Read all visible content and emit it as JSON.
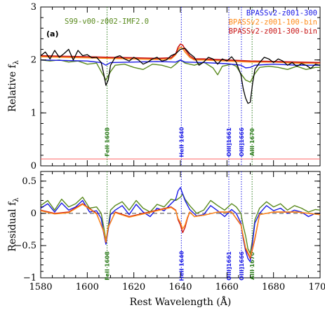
{
  "chart_data": {
    "type": "line",
    "xlabel": "Rest Wavelength (Å)",
    "xlim": [
      1580,
      1700
    ],
    "x_ticks": [
      1580,
      1600,
      1620,
      1640,
      1660,
      1680,
      1700
    ],
    "panels": [
      {
        "panel_label": "(a)",
        "ylabel": "Relative f",
        "ylabel_sub": "λ",
        "ylim": [
          0,
          3
        ],
        "y_ticks": [
          0,
          1,
          2,
          3
        ],
        "legend_left": {
          "name": "S99-v00-z002-IMF2.0",
          "color": "#5a8a1e"
        },
        "legend_right": [
          {
            "name": "BPASSv2-z001-300",
            "color": "#1a1ae6"
          },
          {
            "name": "BPASSv2-z001-100-bin",
            "color": "#ff8c1a"
          },
          {
            "name": "BPASSv2-z001-300-bin",
            "color": "#c81414"
          }
        ],
        "reference_line": {
          "y": 0.13,
          "color": "#ff6666"
        },
        "observed_color": "#000000"
      },
      {
        "ylabel": "Residual f",
        "ylabel_sub": "λ",
        "ylim": [
          -1,
          0.65
        ],
        "y_ticks": [
          -1,
          -0.5,
          0,
          0.5
        ],
        "y_tick_labels": [
          "−1",
          "−0.5",
          "0",
          "0.5"
        ],
        "zero_line": true
      }
    ],
    "line_markers": [
      {
        "label": "FeII 1608",
        "x": 1608.5,
        "color": "#2e7d1e"
      },
      {
        "label": "HeII 1640",
        "x": 1640.4,
        "color": "#1a1ae6"
      },
      {
        "label": "OIII]1661",
        "x": 1660.8,
        "color": "#1a1ae6"
      },
      {
        "label": "OIII]1666",
        "x": 1666.2,
        "color": "#1a1ae6"
      },
      {
        "label": "AlII 1670",
        "x": 1670.8,
        "color": "#2e7d1e"
      }
    ],
    "observed_top": {
      "x": [
        1580,
        1582,
        1584,
        1586,
        1588,
        1590,
        1592,
        1594,
        1596,
        1598,
        1600,
        1602,
        1604,
        1606,
        1607,
        1608,
        1609,
        1610,
        1612,
        1614,
        1616,
        1618,
        1620,
        1622,
        1624,
        1626,
        1628,
        1630,
        1632,
        1634,
        1636,
        1638,
        1640,
        1642,
        1644,
        1646,
        1648,
        1650,
        1652,
        1654,
        1656,
        1658,
        1660,
        1662,
        1664,
        1666,
        1667,
        1668,
        1669,
        1670,
        1671,
        1672,
        1674,
        1676,
        1678,
        1680,
        1682,
        1684,
        1686,
        1688,
        1690,
        1692,
        1694,
        1696,
        1698,
        1700
      ],
      "y": [
        2.08,
        2.15,
        2.02,
        2.18,
        2.05,
        2.12,
        2.2,
        2.0,
        2.18,
        2.08,
        2.1,
        2.04,
        2.05,
        1.95,
        1.75,
        1.52,
        1.62,
        1.9,
        2.05,
        2.08,
        2.02,
        1.98,
        2.05,
        2.0,
        1.92,
        1.96,
        2.02,
        2.05,
        1.98,
        2.0,
        2.08,
        2.12,
        2.2,
        2.22,
        2.12,
        2.05,
        1.9,
        1.96,
        2.05,
        2.02,
        1.92,
        2.02,
        1.98,
        2.06,
        1.95,
        1.72,
        1.45,
        1.28,
        1.18,
        1.2,
        1.55,
        1.82,
        1.95,
        2.05,
        2.02,
        1.95,
        2.02,
        1.98,
        1.9,
        1.95,
        1.88,
        1.93,
        1.9,
        1.84,
        1.92,
        1.9
      ]
    },
    "model_top": [
      {
        "name": "S99-v00-z002-IMF2.0",
        "x": [
          1580,
          1584,
          1588,
          1592,
          1596,
          1600,
          1604,
          1606,
          1608,
          1610,
          1612,
          1616,
          1620,
          1624,
          1628,
          1632,
          1636,
          1638,
          1640,
          1642,
          1646,
          1650,
          1654,
          1656,
          1658,
          1662,
          1664,
          1666,
          1668,
          1670,
          1672,
          1674,
          1678,
          1682,
          1686,
          1690,
          1694,
          1698,
          1700
        ],
        "y": [
          2.0,
          1.98,
          2.0,
          1.96,
          1.98,
          1.92,
          1.94,
          1.78,
          1.62,
          1.78,
          1.9,
          1.92,
          1.86,
          1.82,
          1.92,
          1.9,
          1.85,
          1.92,
          2.0,
          1.94,
          1.9,
          1.96,
          1.85,
          1.72,
          1.88,
          1.92,
          1.88,
          1.74,
          1.62,
          1.58,
          1.74,
          1.86,
          1.88,
          1.86,
          1.82,
          1.88,
          1.82,
          1.86,
          1.86
        ]
      },
      {
        "name": "BPASSv2-z001-300",
        "x": [
          1580,
          1590,
          1600,
          1606,
          1608,
          1610,
          1620,
          1630,
          1638,
          1640,
          1642,
          1650,
          1660,
          1666,
          1668,
          1670,
          1672,
          1680,
          1690,
          1700
        ],
        "y": [
          2.0,
          1.99,
          1.98,
          1.95,
          1.9,
          1.95,
          1.96,
          1.97,
          1.96,
          2.0,
          1.96,
          1.95,
          1.93,
          1.9,
          1.85,
          1.86,
          1.9,
          1.92,
          1.9,
          1.9
        ]
      },
      {
        "name": "BPASSv2-z001-100-bin",
        "x": [
          1580,
          1590,
          1600,
          1610,
          1620,
          1630,
          1636,
          1638,
          1639,
          1640,
          1641,
          1642,
          1644,
          1646,
          1650,
          1660,
          1670,
          1680,
          1690,
          1700
        ],
        "y": [
          2.06,
          2.05,
          2.04,
          2.03,
          2.02,
          2.01,
          2.02,
          2.1,
          2.2,
          2.24,
          2.22,
          2.15,
          2.05,
          2.0,
          2.0,
          1.98,
          1.96,
          1.96,
          1.94,
          1.94
        ]
      },
      {
        "name": "BPASSv2-z001-300-bin",
        "x": [
          1580,
          1590,
          1600,
          1610,
          1620,
          1630,
          1636,
          1638,
          1639,
          1640,
          1641,
          1642,
          1644,
          1646,
          1650,
          1660,
          1670,
          1680,
          1690,
          1700
        ],
        "y": [
          2.08,
          2.07,
          2.06,
          2.05,
          2.04,
          2.03,
          2.04,
          2.12,
          2.24,
          2.3,
          2.28,
          2.2,
          2.08,
          2.02,
          2.02,
          2.0,
          1.98,
          1.97,
          1.96,
          1.95
        ]
      }
    ],
    "residual": [
      {
        "name": "S99-v00-z002-IMF2.0",
        "x": [
          1580,
          1583,
          1586,
          1589,
          1592,
          1595,
          1598,
          1601,
          1604,
          1606,
          1607,
          1608,
          1609,
          1610,
          1612,
          1615,
          1618,
          1621,
          1624,
          1627,
          1630,
          1633,
          1636,
          1638,
          1640,
          1641,
          1642,
          1644,
          1647,
          1650,
          1653,
          1656,
          1659,
          1662,
          1664,
          1666,
          1667,
          1668,
          1669,
          1670,
          1671,
          1672,
          1674,
          1677,
          1680,
          1683,
          1686,
          1689,
          1692,
          1695,
          1698,
          1700
        ],
        "y": [
          0.12,
          0.2,
          0.05,
          0.22,
          0.1,
          0.15,
          0.25,
          0.08,
          0.1,
          0.0,
          -0.2,
          -0.42,
          -0.2,
          0.05,
          0.12,
          0.18,
          0.05,
          0.2,
          0.08,
          0.02,
          0.14,
          0.1,
          0.22,
          0.2,
          0.25,
          0.3,
          0.22,
          0.12,
          0.0,
          0.05,
          0.2,
          0.12,
          0.05,
          0.15,
          0.1,
          0.0,
          -0.2,
          -0.35,
          -0.55,
          -0.62,
          -0.4,
          -0.1,
          0.08,
          0.18,
          0.1,
          0.15,
          0.05,
          0.12,
          0.08,
          0.02,
          0.06,
          0.05
        ]
      },
      {
        "name": "BPASSv2-z001-300",
        "x": [
          1580,
          1583,
          1586,
          1589,
          1592,
          1595,
          1598,
          1601,
          1604,
          1606,
          1607,
          1608,
          1609,
          1610,
          1612,
          1615,
          1618,
          1621,
          1624,
          1627,
          1630,
          1633,
          1636,
          1638,
          1639,
          1640,
          1641,
          1642,
          1644,
          1647,
          1650,
          1653,
          1656,
          1659,
          1662,
          1664,
          1666,
          1667,
          1668,
          1669,
          1670,
          1671,
          1672,
          1674,
          1677,
          1680,
          1683,
          1686,
          1689,
          1692,
          1695,
          1698,
          1700
        ],
        "y": [
          0.08,
          0.15,
          0.02,
          0.16,
          0.05,
          0.1,
          0.2,
          0.02,
          0.04,
          -0.08,
          -0.3,
          -0.48,
          -0.25,
          -0.02,
          0.05,
          0.12,
          -0.02,
          0.14,
          0.02,
          -0.05,
          0.08,
          0.04,
          0.15,
          0.22,
          0.35,
          0.4,
          0.3,
          0.2,
          0.06,
          -0.04,
          -0.02,
          0.12,
          0.04,
          -0.05,
          0.06,
          0.0,
          -0.15,
          -0.4,
          -0.58,
          -0.7,
          -0.75,
          -0.45,
          -0.15,
          0.0,
          0.12,
          0.04,
          0.08,
          0.0,
          0.05,
          0.02,
          -0.05,
          0.0,
          0.0
        ]
      },
      {
        "name": "BPASSv2-z001-300-bin",
        "x": [
          1580,
          1586,
          1592,
          1598,
          1604,
          1607,
          1608,
          1609,
          1612,
          1618,
          1624,
          1630,
          1636,
          1638,
          1639,
          1640,
          1641,
          1642,
          1643,
          1644,
          1646,
          1650,
          1656,
          1662,
          1666,
          1668,
          1670,
          1672,
          1674,
          1680,
          1690,
          1700
        ],
        "y": [
          0.05,
          0.0,
          0.02,
          0.15,
          0.0,
          -0.28,
          -0.45,
          -0.22,
          0.02,
          -0.05,
          0.0,
          0.05,
          0.1,
          0.05,
          -0.1,
          -0.18,
          -0.3,
          -0.22,
          -0.08,
          0.02,
          -0.05,
          -0.03,
          0.02,
          0.02,
          -0.18,
          -0.55,
          -0.7,
          -0.4,
          -0.02,
          0.02,
          0.02,
          -0.02
        ]
      },
      {
        "name": "BPASSv2-z001-100-bin",
        "x": [
          1580,
          1586,
          1592,
          1598,
          1604,
          1607,
          1608,
          1609,
          1612,
          1618,
          1624,
          1630,
          1636,
          1638,
          1639,
          1640,
          1641,
          1642,
          1643,
          1644,
          1646,
          1650,
          1656,
          1662,
          1666,
          1668,
          1670,
          1672,
          1674,
          1680,
          1690,
          1700
        ],
        "y": [
          0.04,
          -0.01,
          0.01,
          0.14,
          -0.01,
          -0.27,
          -0.44,
          -0.21,
          0.01,
          -0.06,
          -0.01,
          0.04,
          0.09,
          0.04,
          -0.08,
          -0.14,
          -0.24,
          -0.18,
          -0.06,
          0.02,
          -0.05,
          -0.03,
          0.02,
          0.02,
          -0.17,
          -0.53,
          -0.68,
          -0.38,
          -0.02,
          0.02,
          0.02,
          -0.02
        ]
      }
    ]
  }
}
